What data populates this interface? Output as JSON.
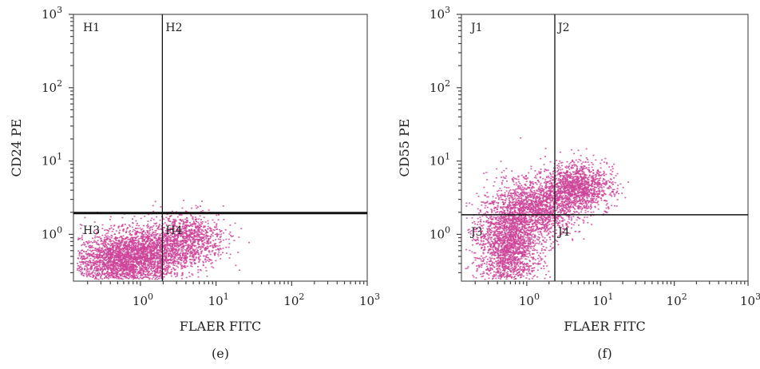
{
  "chart_data": [
    {
      "type": "scatter",
      "panel_label": "(e)",
      "xlabel": "FLAER FITC",
      "ylabel": "CD24 PE",
      "x_scale": "log",
      "y_scale": "log",
      "xlim": [
        0.13,
        1000
      ],
      "ylim": [
        0.23,
        1000
      ],
      "x_ticks": [
        {
          "value": 1,
          "base": "10",
          "exp": "0"
        },
        {
          "value": 10,
          "base": "10",
          "exp": "1"
        },
        {
          "value": 100,
          "base": "10",
          "exp": "2"
        },
        {
          "value": 1000,
          "base": "10",
          "exp": "3"
        }
      ],
      "y_ticks": [
        {
          "value": 1,
          "base": "10",
          "exp": "0"
        },
        {
          "value": 10,
          "base": "10",
          "exp": "1"
        },
        {
          "value": 100,
          "base": "10",
          "exp": "2"
        },
        {
          "value": 1000,
          "base": "10",
          "exp": "3"
        }
      ],
      "gate": {
        "x": 1.95,
        "y": 1.95
      },
      "quadrants": [
        "H1",
        "H2",
        "H3",
        "H4"
      ],
      "point_color": "#cc4499",
      "clusters": [
        {
          "cx": 0.6,
          "cy": 0.45,
          "sx": 0.33,
          "sy": 0.2,
          "n": 2600
        },
        {
          "cx": 4.0,
          "cy": 0.85,
          "sx": 0.25,
          "sy": 0.18,
          "n": 1100
        },
        {
          "cx": 1.5,
          "cy": 0.65,
          "sx": 0.22,
          "sy": 0.18,
          "n": 500
        }
      ]
    },
    {
      "type": "scatter",
      "panel_label": "(f)",
      "xlabel": "FLAER FITC",
      "ylabel": "CD55 PE",
      "x_scale": "log",
      "y_scale": "log",
      "xlim": [
        0.13,
        1000
      ],
      "ylim": [
        0.23,
        1000
      ],
      "x_ticks": [
        {
          "value": 1,
          "base": "10",
          "exp": "0"
        },
        {
          "value": 10,
          "base": "10",
          "exp": "1"
        },
        {
          "value": 100,
          "base": "10",
          "exp": "2"
        },
        {
          "value": 1000,
          "base": "10",
          "exp": "3"
        }
      ],
      "y_ticks": [
        {
          "value": 1,
          "base": "10",
          "exp": "0"
        },
        {
          "value": 10,
          "base": "10",
          "exp": "1"
        },
        {
          "value": 100,
          "base": "10",
          "exp": "2"
        },
        {
          "value": 1000,
          "base": "10",
          "exp": "3"
        }
      ],
      "gate": {
        "x": 2.4,
        "y": 1.85
      },
      "quadrants": [
        "J1",
        "J2",
        "J3",
        "J4"
      ],
      "point_color": "#cc4499",
      "clusters": [
        {
          "cx": 0.55,
          "cy": 0.8,
          "sx": 0.22,
          "sy": 0.35,
          "n": 2300
        },
        {
          "cx": 1.6,
          "cy": 2.4,
          "sx": 0.25,
          "sy": 0.2,
          "n": 1300
        },
        {
          "cx": 5.0,
          "cy": 4.5,
          "sx": 0.22,
          "sy": 0.17,
          "n": 1200
        }
      ]
    }
  ]
}
